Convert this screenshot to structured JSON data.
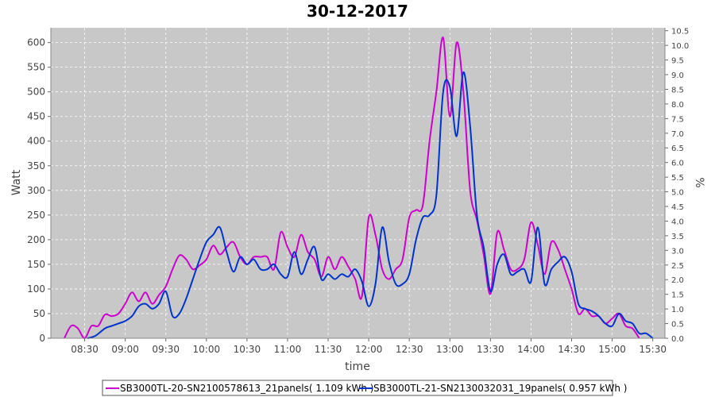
{
  "chart_data": {
    "type": "line",
    "title": "30-12-2017",
    "xlabel": "time",
    "ylabel": "Watt",
    "y2label": "%",
    "grid": true,
    "legend_position": "bottom",
    "xlim": [
      "08:05",
      "15:39"
    ],
    "ylim": [
      0,
      630
    ],
    "y2lim": [
      0,
      10.6
    ],
    "x_ticks": [
      "08:30",
      "09:00",
      "09:30",
      "10:00",
      "10:30",
      "11:00",
      "11:30",
      "12:00",
      "12:30",
      "13:00",
      "13:30",
      "14:00",
      "14:30",
      "15:00",
      "15:30"
    ],
    "y_ticks": [
      0,
      50,
      100,
      150,
      200,
      250,
      300,
      350,
      400,
      450,
      500,
      550,
      600
    ],
    "y2_ticks": [
      "0.0",
      "0.5",
      "1.0",
      "1.5",
      "2.0",
      "2.5",
      "3.0",
      "3.5",
      "4.0",
      "4.5",
      "5.0",
      "5.5",
      "6.0",
      "6.5",
      "7.0",
      "7.5",
      "8.0",
      "8.5",
      "9.0",
      "9.5",
      "10.0",
      "10.5"
    ],
    "colors": {
      "plot_bg": "#c8c8c8",
      "grid": "#ffffff",
      "series1": "#cc00cc",
      "series2": "#0033cc"
    },
    "series": [
      {
        "name": "SB3000TL-20-SN2100578613_21panels( 1.109 kWh )",
        "color": "#cc00cc",
        "points": [
          [
            "08:15",
            0
          ],
          [
            "08:20",
            25
          ],
          [
            "08:25",
            20
          ],
          [
            "08:30",
            0
          ],
          [
            "08:35",
            25
          ],
          [
            "08:40",
            25
          ],
          [
            "08:45",
            48
          ],
          [
            "08:50",
            45
          ],
          [
            "08:55",
            50
          ],
          [
            "09:00",
            70
          ],
          [
            "09:05",
            93
          ],
          [
            "09:10",
            75
          ],
          [
            "09:15",
            93
          ],
          [
            "09:20",
            70
          ],
          [
            "09:25",
            88
          ],
          [
            "09:30",
            105
          ],
          [
            "09:35",
            140
          ],
          [
            "09:40",
            168
          ],
          [
            "09:45",
            160
          ],
          [
            "09:50",
            140
          ],
          [
            "09:55",
            148
          ],
          [
            "10:00",
            160
          ],
          [
            "10:05",
            188
          ],
          [
            "10:10",
            170
          ],
          [
            "10:15",
            185
          ],
          [
            "10:20",
            195
          ],
          [
            "10:25",
            165
          ],
          [
            "10:30",
            150
          ],
          [
            "10:35",
            165
          ],
          [
            "10:40",
            165
          ],
          [
            "10:45",
            165
          ],
          [
            "10:50",
            140
          ],
          [
            "10:55",
            215
          ],
          [
            "11:00",
            185
          ],
          [
            "11:05",
            165
          ],
          [
            "11:10",
            210
          ],
          [
            "11:15",
            175
          ],
          [
            "11:20",
            160
          ],
          [
            "11:25",
            125
          ],
          [
            "11:30",
            165
          ],
          [
            "11:35",
            140
          ],
          [
            "11:40",
            165
          ],
          [
            "11:45",
            145
          ],
          [
            "11:50",
            120
          ],
          [
            "11:55",
            85
          ],
          [
            "12:00",
            245
          ],
          [
            "12:05",
            210
          ],
          [
            "12:10",
            140
          ],
          [
            "12:15",
            120
          ],
          [
            "12:20",
            140
          ],
          [
            "12:25",
            160
          ],
          [
            "12:30",
            245
          ],
          [
            "12:35",
            260
          ],
          [
            "12:40",
            270
          ],
          [
            "12:45",
            400
          ],
          [
            "12:50",
            500
          ],
          [
            "12:55",
            610
          ],
          [
            "13:00",
            450
          ],
          [
            "13:05",
            600
          ],
          [
            "13:10",
            500
          ],
          [
            "13:15",
            300
          ],
          [
            "13:20",
            240
          ],
          [
            "13:25",
            170
          ],
          [
            "13:30",
            90
          ],
          [
            "13:35",
            215
          ],
          [
            "13:40",
            180
          ],
          [
            "13:45",
            140
          ],
          [
            "13:50",
            140
          ],
          [
            "13:55",
            160
          ],
          [
            "14:00",
            235
          ],
          [
            "14:05",
            190
          ],
          [
            "14:10",
            130
          ],
          [
            "14:15",
            195
          ],
          [
            "14:20",
            180
          ],
          [
            "14:25",
            140
          ],
          [
            "14:30",
            100
          ],
          [
            "14:35",
            50
          ],
          [
            "14:40",
            60
          ],
          [
            "14:45",
            45
          ],
          [
            "14:50",
            45
          ],
          [
            "14:55",
            30
          ],
          [
            "15:00",
            40
          ],
          [
            "15:05",
            50
          ],
          [
            "15:10",
            25
          ],
          [
            "15:15",
            20
          ],
          [
            "15:20",
            0
          ]
        ]
      },
      {
        "name": "SB3000TL-21-SN2130032031_19panels( 0.957 kWh )",
        "color": "#0033cc",
        "points": [
          [
            "08:32",
            0
          ],
          [
            "08:38",
            5
          ],
          [
            "08:45",
            20
          ],
          [
            "08:50",
            25
          ],
          [
            "08:55",
            30
          ],
          [
            "09:00",
            35
          ],
          [
            "09:05",
            45
          ],
          [
            "09:10",
            65
          ],
          [
            "09:15",
            70
          ],
          [
            "09:20",
            60
          ],
          [
            "09:25",
            70
          ],
          [
            "09:30",
            95
          ],
          [
            "09:35",
            45
          ],
          [
            "09:40",
            50
          ],
          [
            "09:45",
            80
          ],
          [
            "09:50",
            120
          ],
          [
            "09:55",
            160
          ],
          [
            "10:00",
            195
          ],
          [
            "10:05",
            210
          ],
          [
            "10:10",
            225
          ],
          [
            "10:15",
            175
          ],
          [
            "10:20",
            135
          ],
          [
            "10:25",
            165
          ],
          [
            "10:30",
            150
          ],
          [
            "10:35",
            160
          ],
          [
            "10:40",
            140
          ],
          [
            "10:45",
            140
          ],
          [
            "10:50",
            150
          ],
          [
            "10:55",
            130
          ],
          [
            "11:00",
            125
          ],
          [
            "11:05",
            175
          ],
          [
            "11:10",
            130
          ],
          [
            "11:15",
            160
          ],
          [
            "11:20",
            185
          ],
          [
            "11:25",
            120
          ],
          [
            "11:30",
            130
          ],
          [
            "11:35",
            120
          ],
          [
            "11:40",
            130
          ],
          [
            "11:45",
            125
          ],
          [
            "11:50",
            140
          ],
          [
            "11:55",
            115
          ],
          [
            "12:00",
            65
          ],
          [
            "12:05",
            110
          ],
          [
            "12:10",
            225
          ],
          [
            "12:15",
            155
          ],
          [
            "12:20",
            110
          ],
          [
            "12:25",
            110
          ],
          [
            "12:30",
            130
          ],
          [
            "12:35",
            200
          ],
          [
            "12:40",
            245
          ],
          [
            "12:45",
            250
          ],
          [
            "12:50",
            290
          ],
          [
            "12:55",
            500
          ],
          [
            "13:00",
            510
          ],
          [
            "13:05",
            410
          ],
          [
            "13:10",
            540
          ],
          [
            "13:15",
            430
          ],
          [
            "13:20",
            250
          ],
          [
            "13:25",
            185
          ],
          [
            "13:30",
            95
          ],
          [
            "13:35",
            150
          ],
          [
            "13:40",
            170
          ],
          [
            "13:45",
            130
          ],
          [
            "13:50",
            135
          ],
          [
            "13:55",
            140
          ],
          [
            "14:00",
            115
          ],
          [
            "14:05",
            225
          ],
          [
            "14:10",
            110
          ],
          [
            "14:15",
            140
          ],
          [
            "14:20",
            155
          ],
          [
            "14:25",
            165
          ],
          [
            "14:30",
            135
          ],
          [
            "14:35",
            70
          ],
          [
            "14:40",
            60
          ],
          [
            "14:45",
            55
          ],
          [
            "14:50",
            45
          ],
          [
            "14:55",
            30
          ],
          [
            "15:00",
            25
          ],
          [
            "15:05",
            50
          ],
          [
            "15:10",
            35
          ],
          [
            "15:15",
            30
          ],
          [
            "15:20",
            10
          ],
          [
            "15:25",
            10
          ],
          [
            "15:30",
            0
          ]
        ]
      }
    ]
  }
}
